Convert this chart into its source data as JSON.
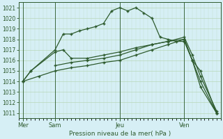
{
  "xlabel": "Pression niveau de la mer( hPa )",
  "background_color": "#d6eff5",
  "plot_bg_color": "#d6eff5",
  "grid_color": "#b8d8b8",
  "line_color": "#2d5a2d",
  "ylim": [
    1010.5,
    1021.5
  ],
  "xlim": [
    -0.5,
    24.5
  ],
  "yticks": [
    1011,
    1012,
    1013,
    1014,
    1015,
    1016,
    1017,
    1018,
    1019,
    1020,
    1021
  ],
  "day_labels": [
    "Mer",
    "Sam",
    "Jeu",
    "Ven"
  ],
  "day_positions": [
    0,
    4,
    12,
    20
  ],
  "s1x": [
    0,
    1,
    4,
    5,
    6,
    7,
    8,
    9,
    10,
    11,
    12,
    13,
    14,
    15,
    16,
    17,
    18,
    19,
    20,
    21,
    22,
    24
  ],
  "s1y": [
    1014.0,
    1015.0,
    1017.0,
    1018.5,
    1018.5,
    1018.8,
    1019.0,
    1019.2,
    1019.5,
    1020.7,
    1021.0,
    1020.7,
    1021.0,
    1020.5,
    1020.0,
    1018.2,
    1018.0,
    1017.8,
    1017.8,
    1016.0,
    1015.0,
    1011.0
  ],
  "s2x": [
    0,
    1,
    4,
    5,
    6,
    8,
    10,
    12,
    14,
    16,
    18,
    20,
    21,
    22,
    24
  ],
  "s2y": [
    1014.0,
    1015.0,
    1016.8,
    1017.0,
    1016.2,
    1016.2,
    1016.5,
    1016.8,
    1017.2,
    1017.5,
    1017.8,
    1018.0,
    1016.0,
    1014.0,
    1011.0
  ],
  "s3x": [
    4,
    6,
    8,
    10,
    12,
    14,
    16,
    18,
    20,
    21,
    22,
    24
  ],
  "s3y": [
    1015.5,
    1015.8,
    1016.0,
    1016.2,
    1016.5,
    1017.0,
    1017.5,
    1017.8,
    1018.2,
    1016.5,
    1014.5,
    1011.2
  ],
  "s4x": [
    0,
    2,
    4,
    6,
    8,
    10,
    12,
    14,
    16,
    18,
    20,
    21,
    22,
    24
  ],
  "s4y": [
    1014.0,
    1014.5,
    1015.0,
    1015.3,
    1015.5,
    1015.8,
    1016.0,
    1016.5,
    1017.0,
    1017.5,
    1018.0,
    1016.0,
    1013.5,
    1011.0
  ]
}
